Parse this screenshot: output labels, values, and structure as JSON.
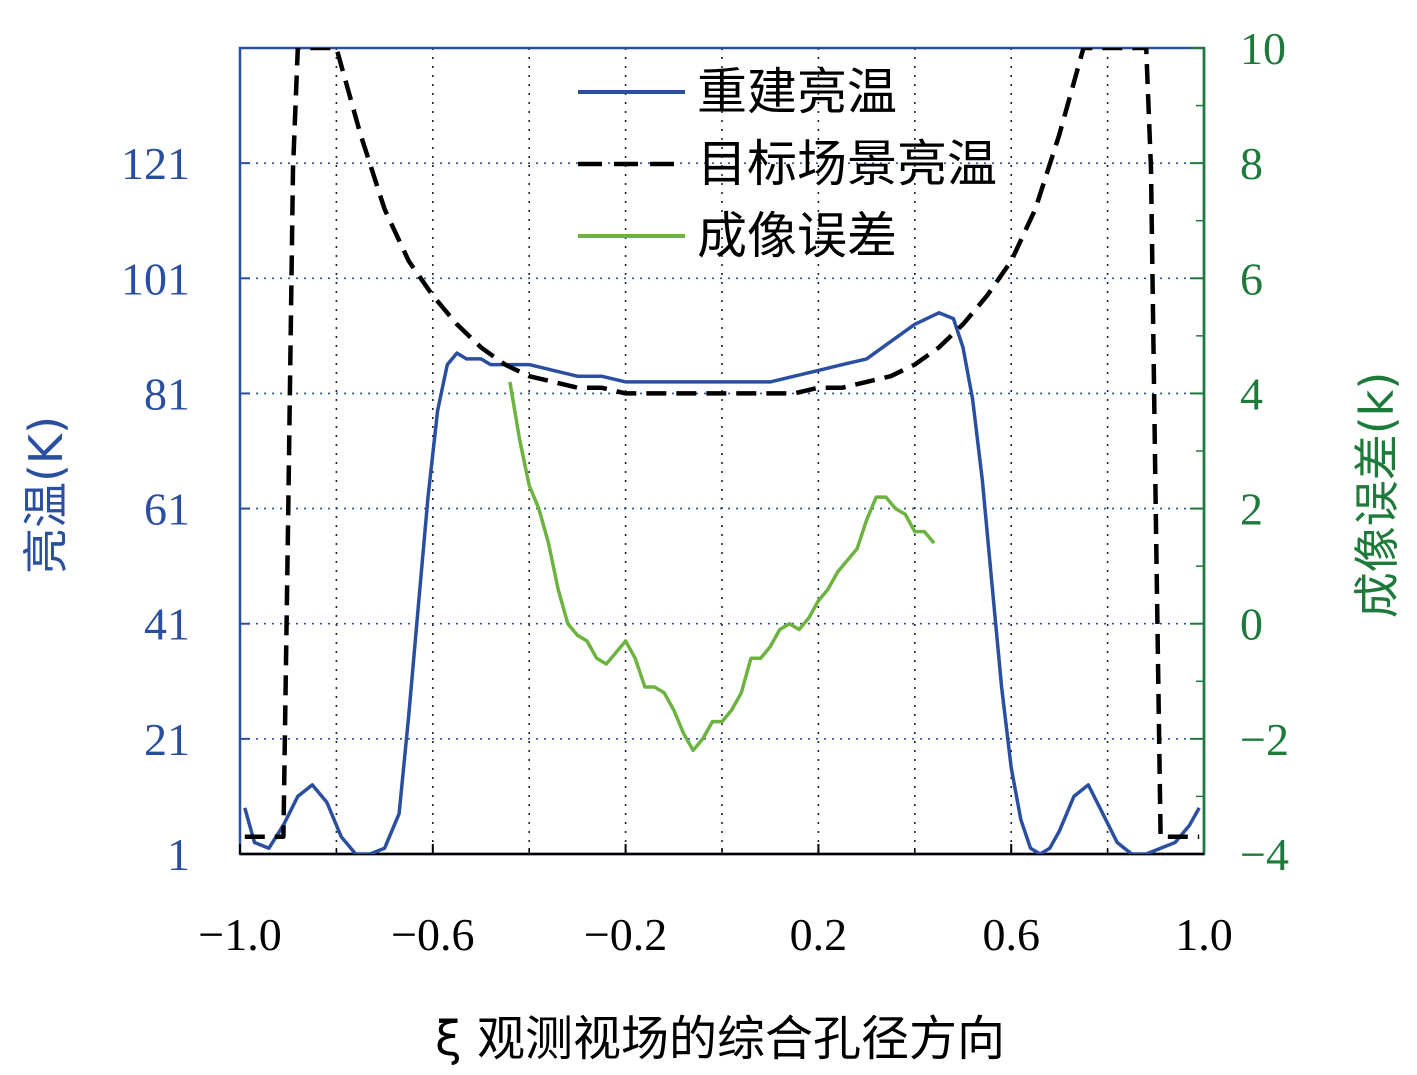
{
  "chart_data": {
    "type": "line",
    "xlabel": "ξ 观测视场的综合孔径方向",
    "ylabel_left": "亮温(K)",
    "ylabel_right": "成像误差(k)",
    "x_range": [
      -1.0,
      1.0
    ],
    "y_left_range": [
      1,
      141
    ],
    "y_right_range": [
      -4,
      10
    ],
    "x_ticks": [
      -1.0,
      -0.6,
      -0.2,
      0.2,
      0.6,
      1.0
    ],
    "x_tick_labels": [
      "−1.0",
      "−0.6",
      "−0.2",
      "0.2",
      "0.6",
      "1.0"
    ],
    "y_left_ticks": [
      1,
      21,
      41,
      61,
      81,
      101,
      121
    ],
    "y_left_tick_labels": [
      "1",
      "21",
      "41",
      "61",
      "81",
      "101",
      "121"
    ],
    "y_right_ticks": [
      -4,
      -2,
      0,
      2,
      4,
      6,
      8,
      10
    ],
    "y_right_tick_labels": [
      "−4",
      "−2",
      "0",
      "2",
      "4",
      "6",
      "8",
      "10"
    ],
    "grid": true,
    "legend_position": "top-center",
    "series": [
      {
        "name": "重建亮温",
        "axis": "left",
        "color": "#2b4fa0",
        "style": "solid",
        "x": [
          -0.99,
          -0.97,
          -0.94,
          -0.91,
          -0.88,
          -0.85,
          -0.82,
          -0.79,
          -0.76,
          -0.73,
          -0.7,
          -0.67,
          -0.65,
          -0.63,
          -0.61,
          -0.59,
          -0.57,
          -0.55,
          -0.53,
          -0.5,
          -0.48,
          -0.45,
          -0.4,
          -0.35,
          -0.3,
          -0.25,
          -0.2,
          -0.15,
          -0.1,
          -0.05,
          0.0,
          0.05,
          0.1,
          0.15,
          0.2,
          0.25,
          0.3,
          0.35,
          0.4,
          0.45,
          0.48,
          0.5,
          0.52,
          0.54,
          0.56,
          0.58,
          0.6,
          0.62,
          0.64,
          0.66,
          0.68,
          0.7,
          0.73,
          0.76,
          0.79,
          0.82,
          0.85,
          0.88,
          0.91,
          0.94,
          0.97,
          0.99
        ],
        "y": [
          9,
          3,
          2,
          6,
          11,
          13,
          10,
          4,
          1,
          1,
          2,
          8,
          25,
          44,
          63,
          78,
          86,
          88,
          87,
          87,
          86,
          86,
          86,
          85,
          84,
          84,
          83,
          83,
          83,
          83,
          83,
          83,
          83,
          84,
          85,
          86,
          87,
          90,
          93,
          95,
          94,
          89,
          80,
          66,
          48,
          30,
          16,
          7,
          2,
          1,
          2,
          5,
          11,
          13,
          8,
          3,
          1,
          1,
          2,
          3,
          6,
          9
        ]
      },
      {
        "name": "目标场景亮温",
        "axis": "left",
        "color": "#000000",
        "style": "dashed",
        "x": [
          -0.99,
          -0.95,
          -0.91,
          -0.9,
          -0.89,
          -0.88,
          -0.85,
          -0.8,
          -0.75,
          -0.7,
          -0.65,
          -0.6,
          -0.55,
          -0.5,
          -0.45,
          -0.4,
          -0.35,
          -0.3,
          -0.25,
          -0.2,
          -0.15,
          -0.1,
          -0.05,
          0.0,
          0.05,
          0.1,
          0.15,
          0.2,
          0.25,
          0.3,
          0.35,
          0.4,
          0.45,
          0.5,
          0.55,
          0.6,
          0.65,
          0.7,
          0.75,
          0.8,
          0.85,
          0.88,
          0.89,
          0.9,
          0.91,
          0.95,
          0.99
        ],
        "y": [
          4,
          4,
          4,
          60,
          120,
          141,
          141,
          141,
          126,
          113,
          104,
          98,
          93,
          89,
          86,
          84,
          83,
          82,
          82,
          81,
          81,
          81,
          81,
          81,
          81,
          81,
          81,
          82,
          82,
          83,
          84,
          86,
          89,
          93,
          98,
          104,
          113,
          126,
          141,
          141,
          141,
          141,
          120,
          60,
          4,
          4,
          4
        ]
      },
      {
        "name": "成像误差",
        "axis": "right",
        "color": "#6db33f",
        "style": "solid",
        "x": [
          -0.44,
          -0.42,
          -0.4,
          -0.38,
          -0.36,
          -0.34,
          -0.32,
          -0.3,
          -0.28,
          -0.26,
          -0.24,
          -0.22,
          -0.2,
          -0.18,
          -0.16,
          -0.14,
          -0.12,
          -0.1,
          -0.08,
          -0.06,
          -0.04,
          -0.02,
          0.0,
          0.02,
          0.04,
          0.06,
          0.08,
          0.1,
          0.12,
          0.14,
          0.16,
          0.18,
          0.2,
          0.22,
          0.24,
          0.26,
          0.28,
          0.3,
          0.32,
          0.34,
          0.36,
          0.38,
          0.4,
          0.42,
          0.44
        ],
        "y": [
          4.2,
          3.2,
          2.4,
          2.0,
          1.4,
          0.6,
          0.0,
          -0.2,
          -0.3,
          -0.6,
          -0.7,
          -0.5,
          -0.3,
          -0.6,
          -1.1,
          -1.1,
          -1.2,
          -1.5,
          -1.9,
          -2.2,
          -2.0,
          -1.7,
          -1.7,
          -1.5,
          -1.2,
          -0.6,
          -0.6,
          -0.4,
          -0.1,
          0.0,
          -0.1,
          0.1,
          0.4,
          0.6,
          0.9,
          1.1,
          1.3,
          1.8,
          2.2,
          2.2,
          2.0,
          1.9,
          1.6,
          1.6,
          1.4
        ]
      }
    ]
  }
}
